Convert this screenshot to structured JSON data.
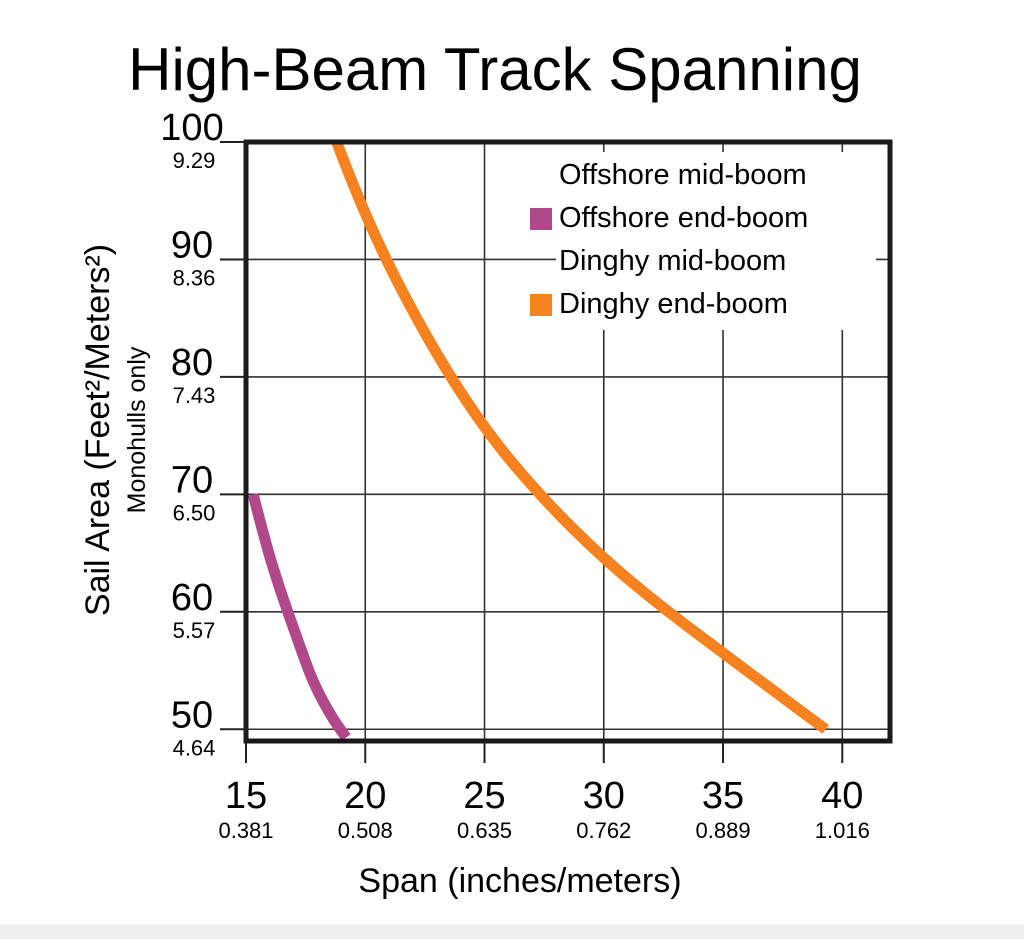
{
  "chart_data": {
    "type": "line",
    "title": "High-Beam Track Spanning",
    "xlabel": "Span (inches/meters)",
    "ylabel": "Sail Area (Feet²/Meters²)",
    "ylabel_note": "Monohulls only",
    "xlim": [
      15,
      42
    ],
    "ylim": [
      49,
      100
    ],
    "x_ticks": [
      {
        "value": 15,
        "label": "15",
        "sublabel": "0.381"
      },
      {
        "value": 20,
        "label": "20",
        "sublabel": "0.508"
      },
      {
        "value": 25,
        "label": "25",
        "sublabel": "0.635"
      },
      {
        "value": 30,
        "label": "30",
        "sublabel": "0.762"
      },
      {
        "value": 35,
        "label": "35",
        "sublabel": "0.889"
      },
      {
        "value": 40,
        "label": "40",
        "sublabel": "1.016"
      }
    ],
    "y_ticks": [
      {
        "value": 100,
        "label": "100",
        "sublabel": "9.29"
      },
      {
        "value": 90,
        "label": "90",
        "sublabel": "8.36"
      },
      {
        "value": 80,
        "label": "80",
        "sublabel": "7.43"
      },
      {
        "value": 70,
        "label": "70",
        "sublabel": "6.50"
      },
      {
        "value": 60,
        "label": "60",
        "sublabel": "5.57"
      },
      {
        "value": 50,
        "label": "50",
        "sublabel": "4.64"
      }
    ],
    "grid": true,
    "legend_position": "top-right",
    "legend": [
      {
        "label": "Offshore mid-boom",
        "color": null
      },
      {
        "label": "Offshore end-boom",
        "color": "#b0488a"
      },
      {
        "label": "Dinghy mid-boom",
        "color": null
      },
      {
        "label": "Dinghy end-boom",
        "color": "#f5821f"
      }
    ],
    "series": [
      {
        "name": "Offshore end-boom",
        "color": "#b0488a",
        "points": [
          [
            15.3,
            70
          ],
          [
            15.8,
            66
          ],
          [
            16.4,
            62
          ],
          [
            17.1,
            58
          ],
          [
            17.8,
            54
          ],
          [
            18.6,
            51
          ],
          [
            19.2,
            49.3
          ]
        ]
      },
      {
        "name": "Dinghy end-boom",
        "color": "#f5821f",
        "points": [
          [
            18.8,
            100
          ],
          [
            20,
            93.5
          ],
          [
            22.5,
            83.5
          ],
          [
            25,
            75.5
          ],
          [
            27.5,
            69.5
          ],
          [
            30,
            64.5
          ],
          [
            32.5,
            60.3
          ],
          [
            35,
            56.5
          ],
          [
            37.5,
            52.7
          ],
          [
            39.3,
            50
          ]
        ]
      }
    ]
  }
}
